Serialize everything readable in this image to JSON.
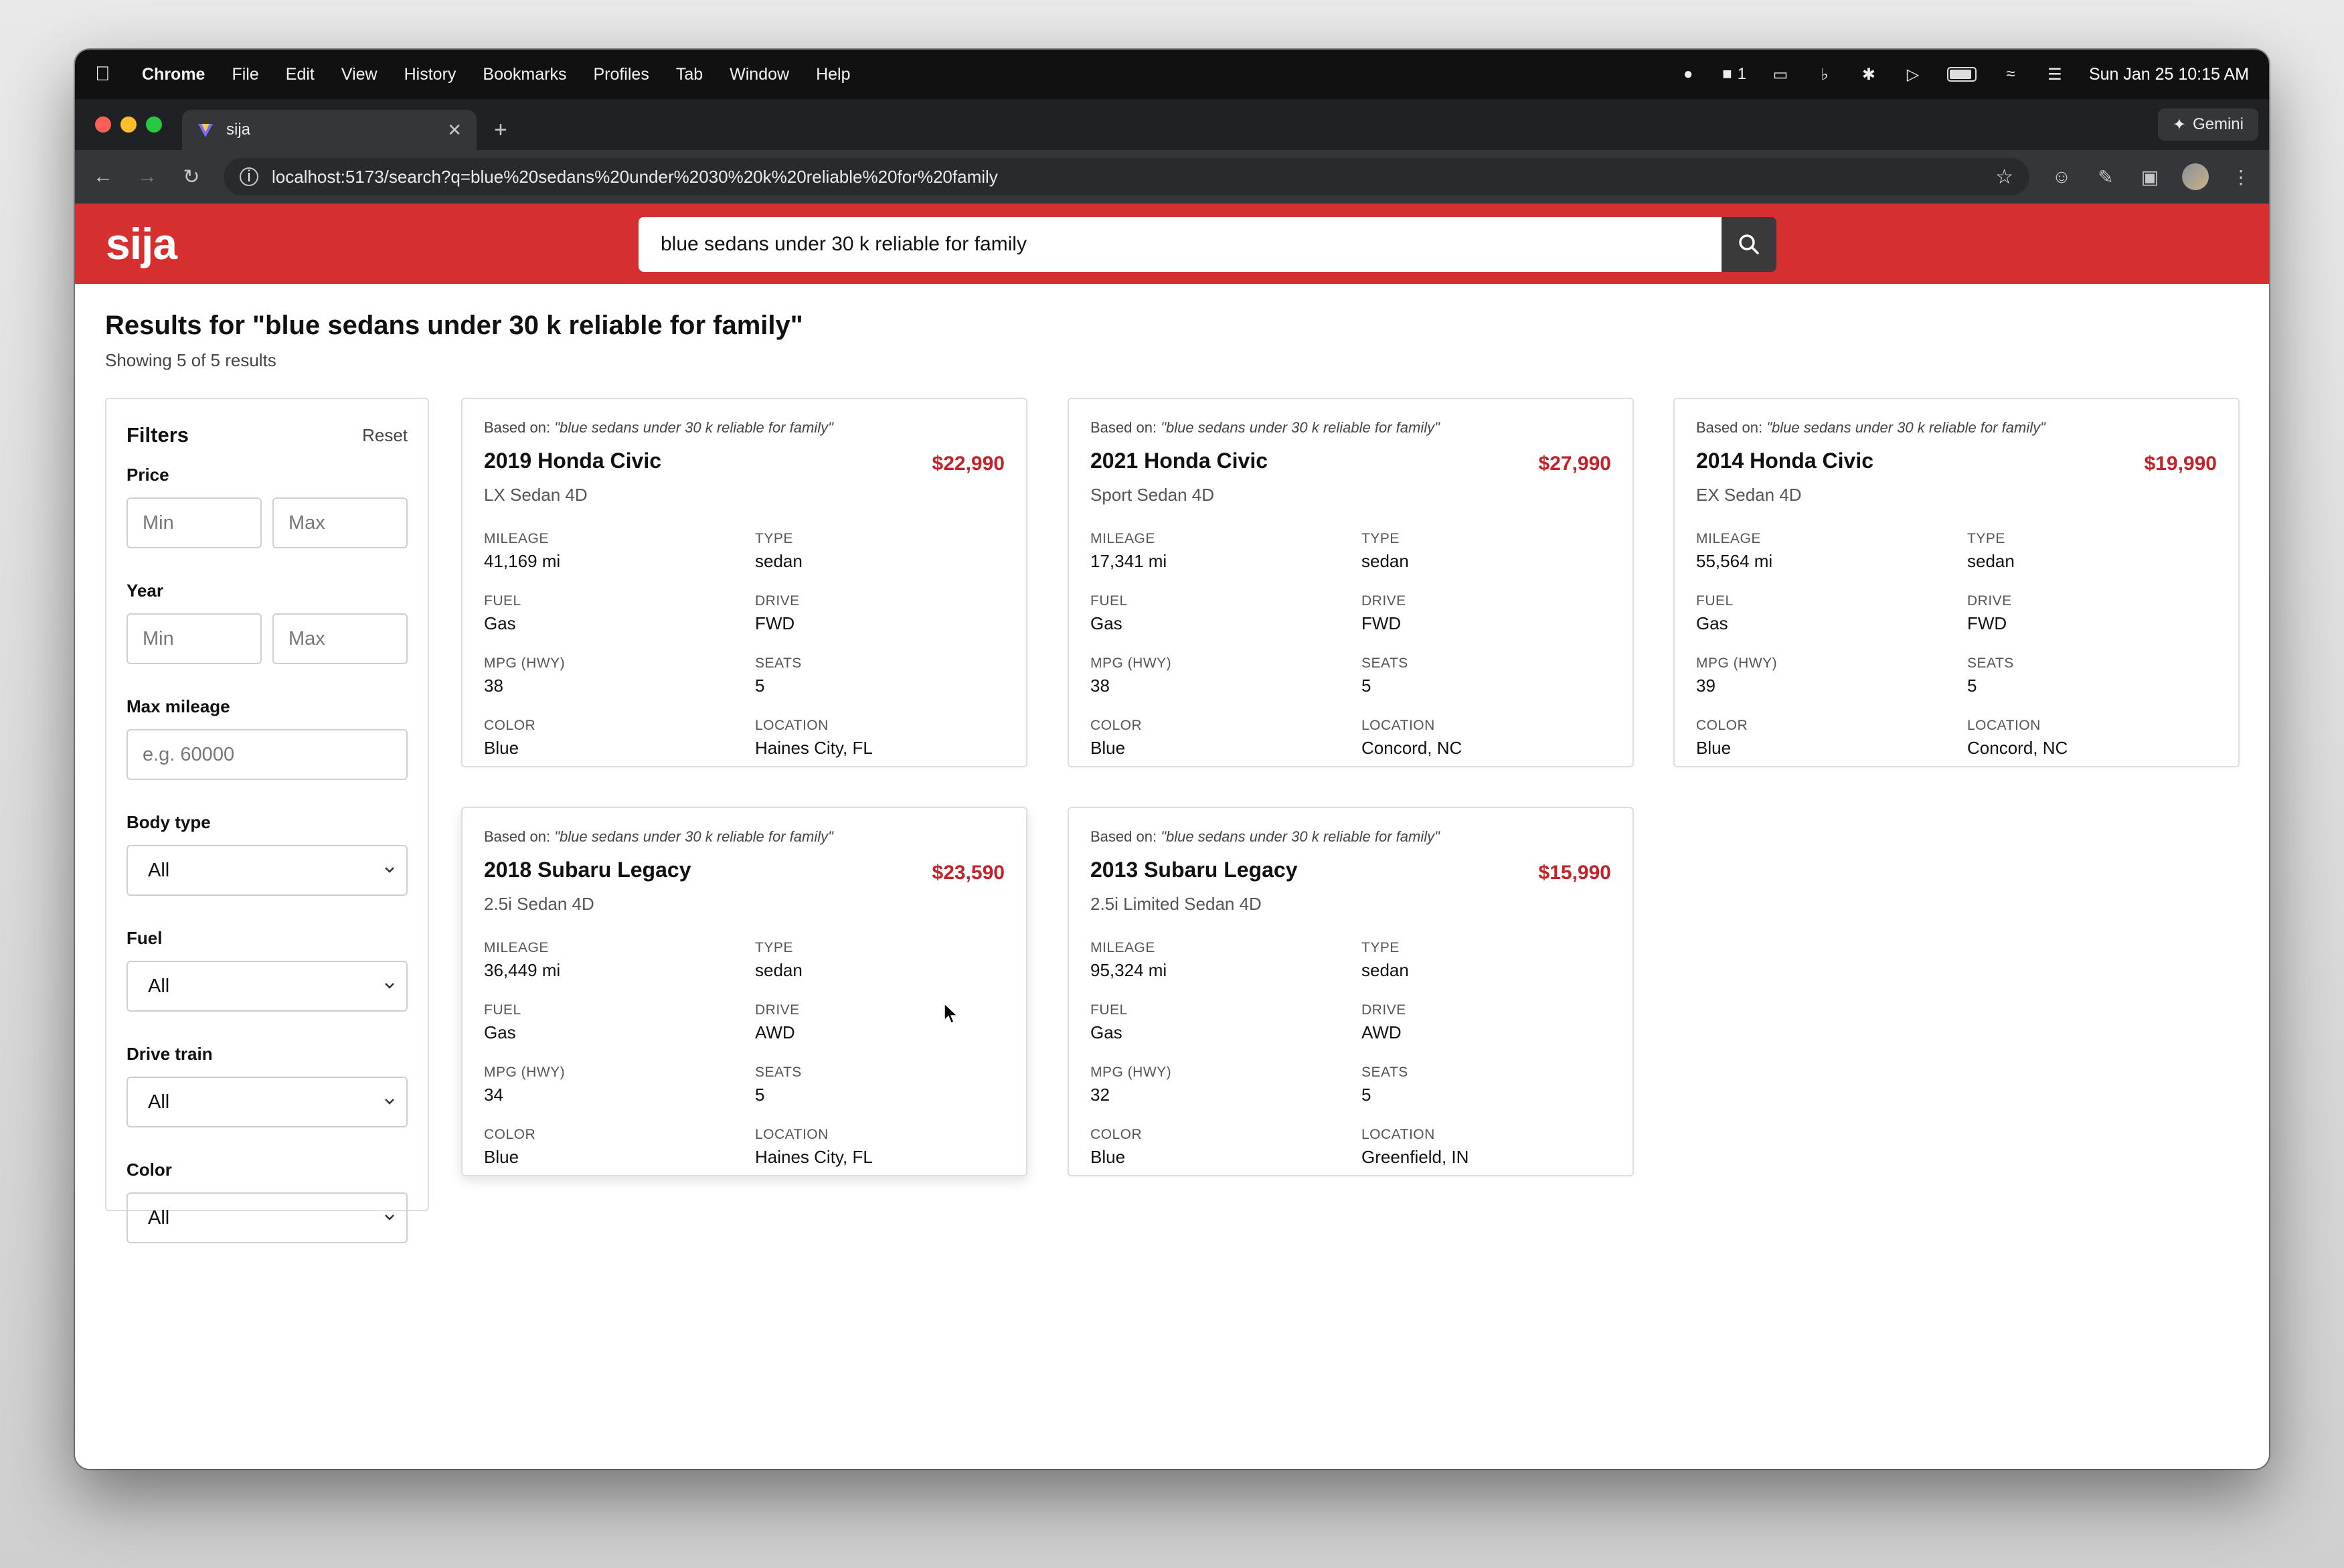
{
  "menubar": {
    "app": "Chrome",
    "items": [
      "File",
      "Edit",
      "View",
      "History",
      "Bookmarks",
      "Profiles",
      "Tab",
      "Window",
      "Help"
    ],
    "notification_count": "1",
    "datetime": "Sun Jan 25  10:15 AM"
  },
  "browser": {
    "tab_title": "sija",
    "new_tab": "+",
    "gemini": "Gemini",
    "url": "localhost:5173/search?q=blue%20sedans%20under%2030%20k%20reliable%20for%20family"
  },
  "site": {
    "logo": "sija",
    "search_value": "blue sedans under 30 k reliable for family"
  },
  "results": {
    "title": "Results for \"blue sedans under 30 k reliable for family\"",
    "count": "Showing 5 of 5 results"
  },
  "filters": {
    "title": "Filters",
    "reset": "Reset",
    "price_label": "Price",
    "year_label": "Year",
    "mileage_label": "Max mileage",
    "body_label": "Body type",
    "fuel_label": "Fuel",
    "drive_label": "Drive train",
    "color_label": "Color",
    "min_placeholder": "Min",
    "max_placeholder": "Max",
    "mileage_placeholder": "e.g. 60000",
    "body_value": "All",
    "fuel_value": "All",
    "drive_value": "All",
    "color_value": "All"
  },
  "spec_labels": {
    "mileage": "MILEAGE",
    "type": "TYPE",
    "fuel": "FUEL",
    "drive": "DRIVE",
    "mpg": "MPG (HWY)",
    "seats": "SEATS",
    "color": "COLOR",
    "location": "LOCATION"
  },
  "cards": [
    {
      "based_prefix": "Based on: ",
      "based_query": "\"blue sedans under 30 k reliable for family\"",
      "title": "2019 Honda Civic",
      "price": "$22,990",
      "trim": "LX Sedan 4D",
      "mileage": "41,169 mi",
      "type": "sedan",
      "fuel": "Gas",
      "drive": "FWD",
      "mpg": "38",
      "seats": "5",
      "color": "Blue",
      "location": "Haines City, FL"
    },
    {
      "based_prefix": "Based on: ",
      "based_query": "\"blue sedans under 30 k reliable for family\"",
      "title": "2021 Honda Civic",
      "price": "$27,990",
      "trim": "Sport Sedan 4D",
      "mileage": "17,341 mi",
      "type": "sedan",
      "fuel": "Gas",
      "drive": "FWD",
      "mpg": "38",
      "seats": "5",
      "color": "Blue",
      "location": "Concord, NC"
    },
    {
      "based_prefix": "Based on: ",
      "based_query": "\"blue sedans under 30 k reliable for family\"",
      "title": "2014 Honda Civic",
      "price": "$19,990",
      "trim": "EX Sedan 4D",
      "mileage": "55,564 mi",
      "type": "sedan",
      "fuel": "Gas",
      "drive": "FWD",
      "mpg": "39",
      "seats": "5",
      "color": "Blue",
      "location": "Concord, NC"
    },
    {
      "based_prefix": "Based on: ",
      "based_query": "\"blue sedans under 30 k reliable for family\"",
      "title": "2018 Subaru Legacy",
      "price": "$23,590",
      "trim": "2.5i Sedan 4D",
      "mileage": "36,449 mi",
      "type": "sedan",
      "fuel": "Gas",
      "drive": "AWD",
      "mpg": "34",
      "seats": "5",
      "color": "Blue",
      "location": "Haines City, FL"
    },
    {
      "based_prefix": "Based on: ",
      "based_query": "\"blue sedans under 30 k reliable for family\"",
      "title": "2013 Subaru Legacy",
      "price": "$15,990",
      "trim": "2.5i Limited Sedan 4D",
      "mileage": "95,324 mi",
      "type": "sedan",
      "fuel": "Gas",
      "drive": "AWD",
      "mpg": "32",
      "seats": "5",
      "color": "Blue",
      "location": "Greenfield, IN"
    }
  ],
  "colors": {
    "brand_red": "#d62f2f",
    "price_red": "#c3232b"
  }
}
